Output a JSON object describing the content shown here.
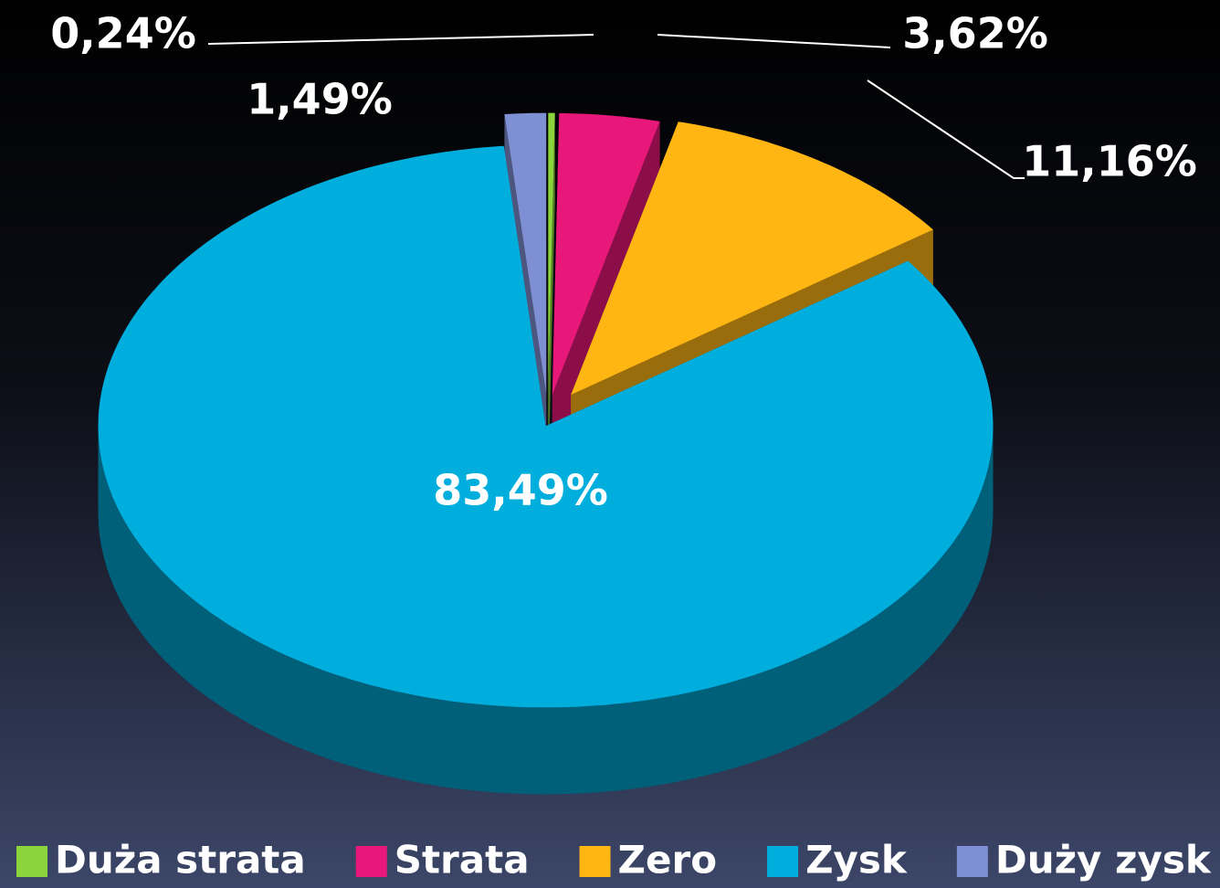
{
  "chart_data": {
    "type": "pie3d",
    "categories": [
      "Duża strata",
      "Strata",
      "Zero",
      "Zysk",
      "Duży zysk"
    ],
    "values": [
      0.24,
      3.62,
      11.16,
      83.49,
      1.49
    ],
    "value_labels": [
      "0,24%",
      "3,62%",
      "11,16%",
      "83,49%",
      "1,49%"
    ],
    "colors": [
      "#8cd43c",
      "#e8177a",
      "#ffb612",
      "#00aedd",
      "#7f8fd4"
    ],
    "legend": "bottom"
  }
}
